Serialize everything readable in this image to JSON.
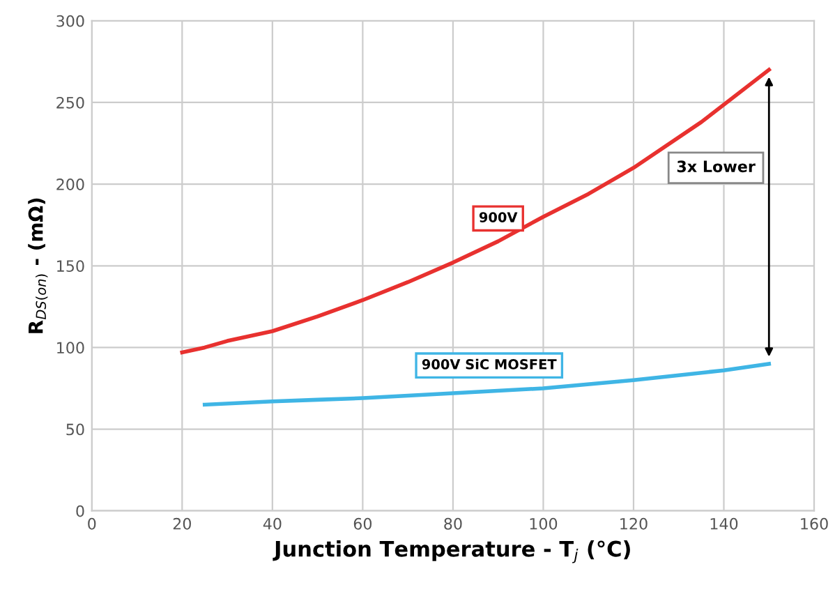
{
  "chart_data": {
    "type": "line",
    "xlabel": "Junction Temperature - T$_{j}$ (°C)",
    "ylabel": "R$_{DS(on)}$ - (mΩ)",
    "xlim": [
      0,
      160
    ],
    "xticks": [
      0,
      20,
      40,
      60,
      80,
      100,
      120,
      140,
      160
    ],
    "ylim": [
      0,
      300
    ],
    "yticks": [
      0,
      50,
      100,
      150,
      200,
      250,
      300
    ],
    "grid": true,
    "legend": false,
    "marker": "none",
    "line_style": "solid",
    "series": [
      {
        "name": "900V",
        "color": "#e8312f",
        "x": [
          20,
          25,
          30,
          40,
          50,
          60,
          70,
          80,
          90,
          100,
          110,
          120,
          135,
          150
        ],
        "values": [
          97,
          100,
          104,
          110,
          119,
          129,
          140,
          152,
          165,
          180,
          194,
          210,
          238,
          270
        ]
      },
      {
        "name": "900V SiC MOSFET",
        "color": "#3fb5e5",
        "x": [
          25,
          40,
          50,
          60,
          80,
          100,
          120,
          140,
          150
        ],
        "values": [
          65,
          67,
          68,
          69,
          72,
          75,
          80,
          86,
          90
        ]
      }
    ],
    "annotations": [
      "3x Lower"
    ]
  }
}
